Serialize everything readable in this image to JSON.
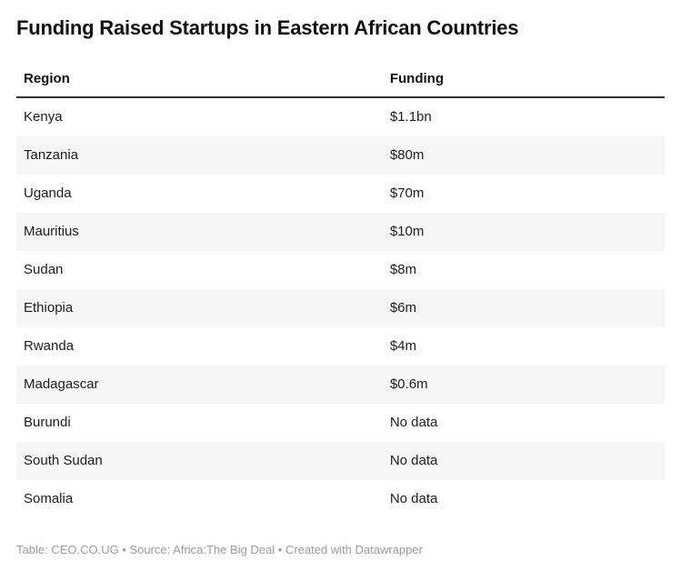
{
  "title": "Funding Raised Startups in Eastern African Countries",
  "chart_data": {
    "type": "table",
    "title": "Funding Raised Startups in Eastern African Countries",
    "columns": [
      "Region",
      "Funding"
    ],
    "rows": [
      [
        "Kenya",
        "$1.1bn"
      ],
      [
        "Tanzania",
        "$80m"
      ],
      [
        "Uganda",
        "$70m"
      ],
      [
        "Mauritius",
        "$10m"
      ],
      [
        "Sudan",
        "$8m"
      ],
      [
        "Ethiopia",
        "$6m"
      ],
      [
        "Rwanda",
        "$4m"
      ],
      [
        "Madagascar",
        "$0.6m"
      ],
      [
        "Burundi",
        "No data"
      ],
      [
        "South Sudan",
        "No data"
      ],
      [
        "Somalia",
        "No data"
      ]
    ],
    "values_numeric_usd_millions": {
      "Kenya": 1100,
      "Tanzania": 80,
      "Uganda": 70,
      "Mauritius": 10,
      "Sudan": 8,
      "Ethiopia": 6,
      "Rwanda": 4,
      "Madagascar": 0.6,
      "Burundi": null,
      "South Sudan": null,
      "Somalia": null
    },
    "layout": {
      "striped_rows": true,
      "stripe_starts_at_row": 2,
      "header_rule": "2px solid dark"
    }
  },
  "footer": {
    "text": "Table: CEO.CO.UG • Source: Africa:The Big Deal • Created with Datawrapper"
  },
  "colors": {
    "text": "#1d1d1d",
    "title": "#111111",
    "stripe_bg": "#f6f6f6",
    "header_rule": "#333333",
    "footer_text": "#9b9b9b",
    "page_bg": "#ffffff"
  }
}
